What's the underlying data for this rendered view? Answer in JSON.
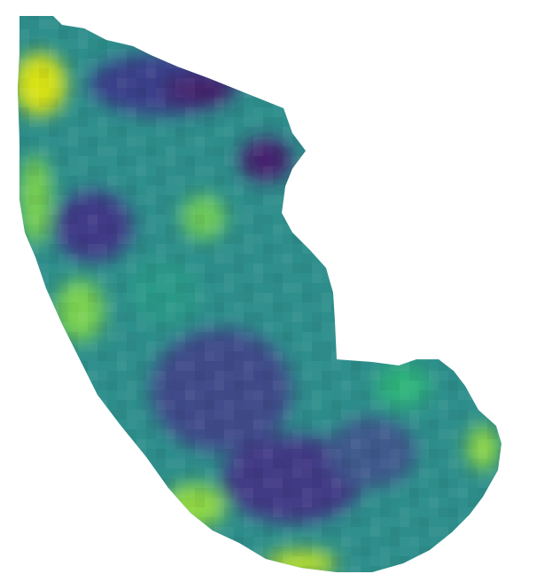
{
  "map": {
    "colormap": [
      "#440154",
      "#3b528b",
      "#21918c",
      "#5ec962",
      "#fde725"
    ],
    "background": "#ffffff",
    "labels_shown": false
  }
}
